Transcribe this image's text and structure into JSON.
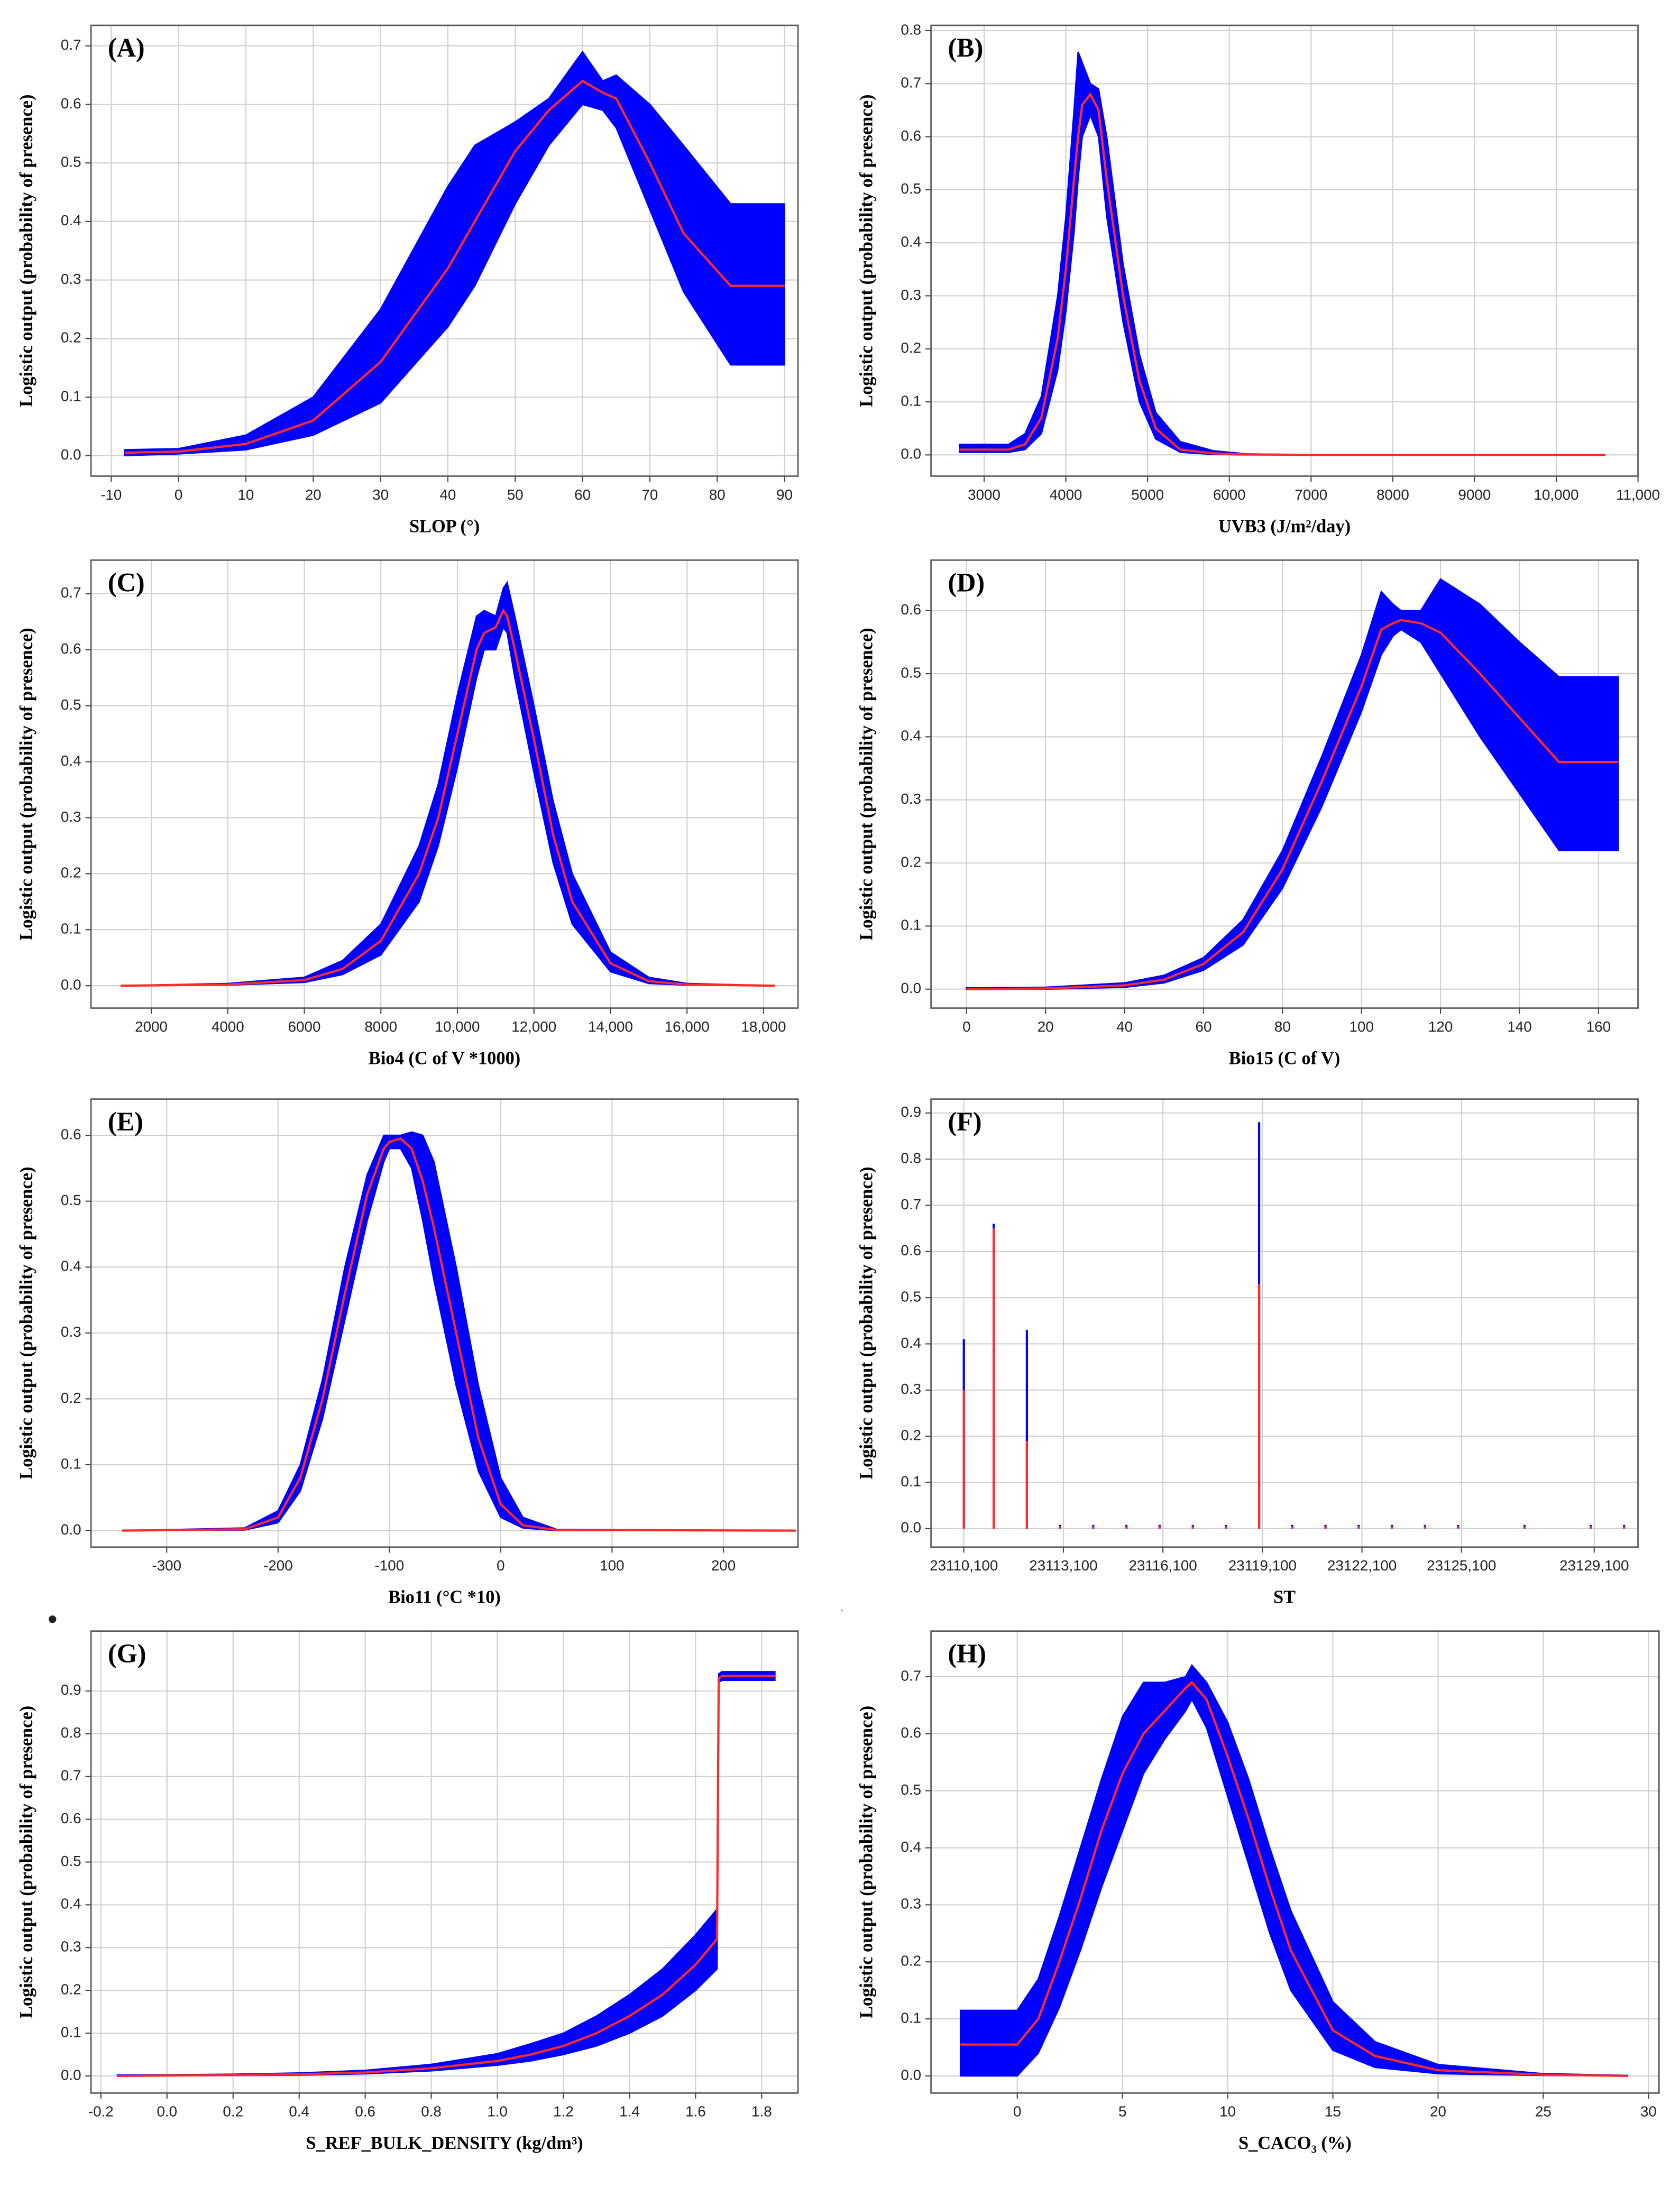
{
  "bullet": "•",
  "comma": ",",
  "chart_data": [
    {
      "type": "band",
      "label": "(A)",
      "x_label": "SLOP (°)",
      "y_label": "Logistic output (probability  of presence)",
      "band_color": "#0000ff",
      "line_color": "#ff2a2a",
      "grid": true,
      "x": [
        -8,
        0,
        10,
        20,
        30,
        40,
        44,
        50,
        55,
        60,
        63,
        65,
        70,
        75,
        82,
        90
      ],
      "values": [
        0.005,
        0.007,
        0.02,
        0.06,
        0.16,
        0.32,
        0.4,
        0.52,
        0.59,
        0.64,
        0.62,
        0.61,
        0.5,
        0.38,
        0.29,
        0.29
      ],
      "upper": [
        0.01,
        0.012,
        0.035,
        0.1,
        0.25,
        0.46,
        0.53,
        0.57,
        0.61,
        0.69,
        0.64,
        0.65,
        0.6,
        0.53,
        0.43,
        0.43
      ],
      "lower": [
        0,
        0.003,
        0.01,
        0.035,
        0.09,
        0.22,
        0.29,
        0.43,
        0.53,
        0.6,
        0.59,
        0.56,
        0.42,
        0.28,
        0.155,
        0.155
      ],
      "xlim": [
        -13,
        92
      ],
      "ylim": [
        -0.035,
        0.735
      ],
      "xticks": [
        -10,
        0,
        10,
        20,
        30,
        40,
        50,
        60,
        70,
        80,
        90
      ],
      "yticks": [
        {
          "value": 0,
          "label": "0.0"
        },
        0.1,
        0.2,
        0.3,
        0.4,
        0.5,
        0.6,
        0.7
      ]
    },
    {
      "type": "band",
      "label": "(B)",
      "x_label": "UVB3 (J/m²/day)",
      "y_label": "Logistic output (probability  of presence)",
      "band_color": "#0000ff",
      "line_color": "#ff2a2a",
      "grid": true,
      "x": [
        2700,
        3300,
        3500,
        3700,
        3900,
        4000,
        4100,
        4150,
        4200,
        4300,
        4400,
        4500,
        4700,
        4900,
        5100,
        5400,
        5800,
        6200,
        7000,
        10600
      ],
      "values": [
        0.01,
        0.01,
        0.02,
        0.07,
        0.22,
        0.35,
        0.52,
        0.6,
        0.66,
        0.68,
        0.65,
        0.52,
        0.3,
        0.14,
        0.05,
        0.01,
        0.003,
        0.001,
        0,
        0
      ],
      "upper": [
        0.02,
        0.02,
        0.04,
        0.11,
        0.3,
        0.45,
        0.65,
        0.76,
        0.74,
        0.7,
        0.69,
        0.6,
        0.36,
        0.19,
        0.08,
        0.025,
        0.008,
        0.002,
        0,
        0
      ],
      "lower": [
        0.005,
        0.005,
        0.01,
        0.04,
        0.16,
        0.27,
        0.42,
        0.52,
        0.6,
        0.64,
        0.6,
        0.45,
        0.25,
        0.1,
        0.03,
        0.005,
        0.001,
        0,
        0,
        0
      ],
      "xlim": [
        2350,
        11000
      ],
      "ylim": [
        -0.04,
        0.81
      ],
      "xticks": [
        3000,
        4000,
        5000,
        6000,
        7000,
        8000,
        9000,
        {
          "value": 10000,
          "label": "10,000"
        },
        {
          "value": 11000,
          "label": "11,000"
        }
      ],
      "yticks": [
        {
          "value": 0,
          "label": "0.0"
        },
        0.1,
        0.2,
        0.3,
        0.4,
        0.5,
        0.6,
        0.7,
        0.8
      ]
    },
    {
      "type": "band",
      "label": "(C)",
      "x_label": "Bio4 (C of V *1000)",
      "y_label": "Logistic output (probability  of presence)",
      "band_color": "#0000ff",
      "line_color": "#ff2a2a",
      "grid": true,
      "x": [
        1200,
        4000,
        6000,
        7000,
        8000,
        9000,
        9500,
        10000,
        10500,
        10700,
        11000,
        11200,
        11300,
        11500,
        12000,
        12500,
        13000,
        14000,
        15000,
        16000,
        18300
      ],
      "values": [
        0,
        0.002,
        0.01,
        0.03,
        0.08,
        0.2,
        0.3,
        0.45,
        0.6,
        0.63,
        0.64,
        0.67,
        0.66,
        0.6,
        0.44,
        0.27,
        0.15,
        0.04,
        0.008,
        0.002,
        0
      ],
      "upper": [
        0,
        0.004,
        0.015,
        0.045,
        0.11,
        0.25,
        0.36,
        0.52,
        0.66,
        0.67,
        0.66,
        0.71,
        0.72,
        0.66,
        0.5,
        0.33,
        0.2,
        0.06,
        0.015,
        0.004,
        0
      ],
      "lower": [
        0,
        0.001,
        0.006,
        0.02,
        0.055,
        0.15,
        0.25,
        0.39,
        0.55,
        0.6,
        0.6,
        0.64,
        0.63,
        0.55,
        0.38,
        0.22,
        0.11,
        0.025,
        0.004,
        0.001,
        0
      ],
      "xlim": [
        425,
        18900
      ],
      "ylim": [
        -0.04,
        0.76
      ],
      "xticks": [
        2000,
        4000,
        6000,
        8000,
        {
          "value": 10000,
          "label": "10,000"
        },
        {
          "value": 12000,
          "label": "12,000"
        },
        {
          "value": 14000,
          "label": "14,000"
        },
        {
          "value": 16000,
          "label": "16,000"
        },
        {
          "value": 18000,
          "label": "18,000"
        }
      ],
      "yticks": [
        {
          "value": 0,
          "label": "0.0"
        },
        0.1,
        0.2,
        0.3,
        0.4,
        0.5,
        0.6,
        0.7
      ]
    },
    {
      "type": "band",
      "label": "(D)",
      "x_label": "Bio15 (C of V)",
      "y_label": "Logistic output (probability  of presence)",
      "band_color": "#0000ff",
      "line_color": "#ff2a2a",
      "grid": true,
      "x": [
        0,
        20,
        40,
        50,
        60,
        70,
        80,
        90,
        100,
        105,
        108,
        110,
        115,
        120,
        130,
        140,
        150,
        165
      ],
      "values": [
        0,
        0.001,
        0.006,
        0.015,
        0.04,
        0.09,
        0.19,
        0.33,
        0.48,
        0.57,
        0.58,
        0.585,
        0.58,
        0.565,
        0.5,
        0.43,
        0.36,
        0.36
      ],
      "upper": [
        0.002,
        0.003,
        0.01,
        0.022,
        0.05,
        0.11,
        0.22,
        0.37,
        0.53,
        0.63,
        0.61,
        0.6,
        0.6,
        0.65,
        0.61,
        0.55,
        0.495,
        0.495
      ],
      "lower": [
        0,
        0,
        0.003,
        0.01,
        0.03,
        0.07,
        0.16,
        0.29,
        0.44,
        0.53,
        0.56,
        0.57,
        0.55,
        0.5,
        0.4,
        0.31,
        0.22,
        0.22
      ],
      "xlim": [
        -9,
        170
      ],
      "ylim": [
        -0.03,
        0.68
      ],
      "xticks": [
        0,
        20,
        40,
        60,
        80,
        100,
        120,
        140,
        160
      ],
      "yticks": [
        {
          "value": 0,
          "label": "0.0"
        },
        0.1,
        0.2,
        0.3,
        0.4,
        0.5,
        0.6
      ]
    },
    {
      "type": "band",
      "label": "(E)",
      "x_label": "Bio11 (°C *10)",
      "y_label": "Logistic output (probability  of presence)",
      "band_color": "#0000ff",
      "line_color": "#ff2a2a",
      "grid": true,
      "x": [
        -340,
        -230,
        -200,
        -180,
        -160,
        -140,
        -120,
        -105,
        -100,
        -90,
        -80,
        -70,
        -60,
        -40,
        -20,
        0,
        20,
        50,
        265
      ],
      "values": [
        0,
        0.002,
        0.02,
        0.08,
        0.2,
        0.36,
        0.51,
        0.58,
        0.59,
        0.595,
        0.58,
        0.53,
        0.46,
        0.3,
        0.14,
        0.04,
        0.008,
        0.001,
        0
      ],
      "upper": [
        0,
        0.004,
        0.03,
        0.1,
        0.23,
        0.4,
        0.54,
        0.6,
        0.6,
        0.6,
        0.605,
        0.6,
        0.56,
        0.4,
        0.22,
        0.08,
        0.02,
        0.002,
        0
      ],
      "lower": [
        0,
        0.001,
        0.012,
        0.06,
        0.17,
        0.32,
        0.47,
        0.56,
        0.58,
        0.58,
        0.55,
        0.47,
        0.38,
        0.22,
        0.09,
        0.02,
        0.004,
        0,
        0
      ],
      "xlim": [
        -368,
        267
      ],
      "ylim": [
        -0.025,
        0.655
      ],
      "xticks": [
        -300,
        -200,
        -100,
        0,
        100,
        200
      ],
      "yticks": [
        {
          "value": 0,
          "label": "0.0"
        },
        0.1,
        0.2,
        0.3,
        0.4,
        0.5,
        0.6
      ]
    },
    {
      "type": "spike",
      "label": "(F)",
      "x_label": "ST",
      "y_label": "Logistic output (probability  of presence)",
      "band_color": "#0000ff",
      "line_color": "#ff2a2a",
      "grid": true,
      "x": [
        23110100,
        23111000,
        23112000,
        23113000,
        23114000,
        23115000,
        23116000,
        23117000,
        23118000,
        23119000,
        23120000,
        23121000,
        23122000,
        23123000,
        23124000,
        23125000,
        23127000,
        23129000,
        23130000
      ],
      "values": [
        0.3,
        0.65,
        0.19,
        0.005,
        0.005,
        0.005,
        0.005,
        0.005,
        0.005,
        0.53,
        0.005,
        0.005,
        0.005,
        0.005,
        0.005,
        0.005,
        0.005,
        0.005,
        0.005
      ],
      "upper": [
        0.41,
        0.66,
        0.43,
        0.008,
        0.008,
        0.008,
        0.008,
        0.008,
        0.008,
        0.88,
        0.008,
        0.008,
        0.008,
        0.008,
        0.008,
        0.008,
        0.008,
        0.008,
        0.008
      ],
      "xlim": [
        23109110,
        23130420
      ],
      "ylim": [
        -0.04,
        0.93
      ],
      "xticks": [
        {
          "value": 23110100,
          "label": "23110,100"
        },
        {
          "value": 23113100,
          "label": "23113,100"
        },
        {
          "value": 23116100,
          "label": "23116,100"
        },
        {
          "value": 23119100,
          "label": "23119,100"
        },
        {
          "value": 23122100,
          "label": "23122,100"
        },
        {
          "value": 23125100,
          "label": "23125,100"
        },
        {
          "value": 23129100,
          "label": "23129,100"
        }
      ],
      "yticks": [
        {
          "value": 0,
          "label": "0.0"
        },
        0.1,
        0.2,
        0.3,
        0.4,
        0.5,
        0.6,
        0.7,
        0.8,
        0.9
      ]
    },
    {
      "type": "band",
      "label": "(G)",
      "x_label": "S_REF_BULK_DENSITY (kg/dm³)",
      "y_label": "Logistic output (probability  of presence)",
      "band_color": "#0000ff",
      "line_color": "#ff2a2a",
      "grid": true,
      "x": [
        -0.15,
        0.2,
        0.4,
        0.6,
        0.8,
        1.0,
        1.1,
        1.2,
        1.3,
        1.4,
        1.5,
        1.6,
        1.665,
        1.67,
        1.68,
        1.84
      ],
      "values": [
        0,
        0.002,
        0.004,
        0.008,
        0.018,
        0.035,
        0.05,
        0.07,
        0.1,
        0.14,
        0.19,
        0.26,
        0.32,
        0.93,
        0.935,
        0.935
      ],
      "upper": [
        0.002,
        0.004,
        0.007,
        0.013,
        0.027,
        0.052,
        0.075,
        0.1,
        0.14,
        0.19,
        0.25,
        0.33,
        0.39,
        0.94,
        0.945,
        0.945
      ],
      "lower": [
        0,
        0.001,
        0.002,
        0.005,
        0.012,
        0.025,
        0.035,
        0.05,
        0.07,
        0.1,
        0.14,
        0.2,
        0.25,
        0.92,
        0.925,
        0.925
      ],
      "xlim": [
        -0.23,
        1.91
      ],
      "ylim": [
        -0.04,
        1.04
      ],
      "xticks": [
        -0.2,
        {
          "value": 0,
          "label": "0.0"
        },
        0.2,
        0.4,
        0.6,
        0.8,
        {
          "value": 1,
          "label": "1.0"
        },
        1.2,
        1.4,
        1.6,
        1.8
      ],
      "yticks": [
        {
          "value": 0,
          "label": "0.0"
        },
        0.1,
        0.2,
        0.3,
        0.4,
        0.5,
        0.6,
        0.7,
        0.8,
        0.9
      ]
    },
    {
      "type": "band",
      "label": "(H)",
      "x_label": "S_CACO₃ (%)",
      "y_label": "Logistic output (probability  of presence)",
      "band_color": "#0000ff",
      "line_color": "#ff2a2a",
      "grid": true,
      "x": [
        -2.7,
        0,
        1,
        2,
        3,
        4,
        5,
        6,
        7,
        8,
        8.3,
        9,
        10,
        11,
        12,
        13,
        15,
        17,
        20,
        25,
        29
      ],
      "values": [
        0.055,
        0.055,
        0.1,
        0.2,
        0.31,
        0.43,
        0.53,
        0.6,
        0.64,
        0.68,
        0.69,
        0.66,
        0.56,
        0.45,
        0.33,
        0.22,
        0.08,
        0.035,
        0.01,
        0.002,
        0
      ],
      "upper": [
        0.115,
        0.115,
        0.17,
        0.28,
        0.4,
        0.52,
        0.63,
        0.69,
        0.69,
        0.7,
        0.72,
        0.69,
        0.62,
        0.52,
        0.4,
        0.29,
        0.13,
        0.06,
        0.02,
        0.004,
        0.001
      ],
      "lower": [
        0,
        0,
        0.04,
        0.12,
        0.22,
        0.33,
        0.43,
        0.53,
        0.59,
        0.64,
        0.66,
        0.61,
        0.49,
        0.37,
        0.25,
        0.15,
        0.045,
        0.015,
        0.004,
        0.001,
        0
      ],
      "xlim": [
        -4.1,
        30.5
      ],
      "ylim": [
        -0.03,
        0.78
      ],
      "xticks": [
        0,
        5,
        10,
        15,
        20,
        25,
        30
      ],
      "yticks": [
        {
          "value": 0,
          "label": "0.0"
        },
        0.1,
        0.2,
        0.3,
        0.4,
        0.5,
        0.6,
        0.7
      ]
    }
  ]
}
